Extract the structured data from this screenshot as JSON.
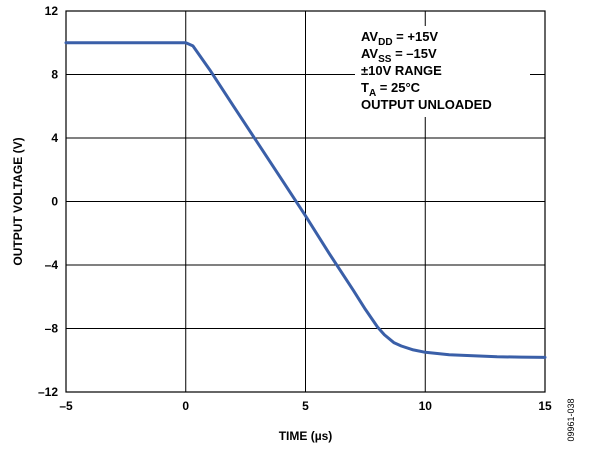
{
  "chart_data": {
    "type": "line",
    "title": "",
    "xlabel": "TIME (µs)",
    "ylabel": "OUTPUT VOLTAGE (V)",
    "xlim": [
      -5,
      15
    ],
    "ylim": [
      -12,
      12
    ],
    "x_ticks": [
      -5,
      0,
      5,
      10,
      15
    ],
    "x_tick_labels": [
      "–5",
      "0",
      "5",
      "10",
      "15"
    ],
    "y_ticks": [
      12,
      8,
      4,
      0,
      -4,
      -8,
      -12
    ],
    "y_tick_labels": [
      "12",
      "8",
      "4",
      "0",
      "–4",
      "–8",
      "–12"
    ],
    "grid": true,
    "series_color": "#3a5fa8",
    "series": [
      {
        "x": [
          -5,
          0,
          0.3,
          1,
          2,
          3,
          4,
          5,
          6,
          7,
          7.5,
          8,
          8.3,
          8.7,
          9,
          9.5,
          10,
          11,
          12,
          13,
          14,
          15
        ],
        "y": [
          10,
          10,
          9.8,
          8.3,
          6.0,
          3.7,
          1.4,
          -0.9,
          -3.3,
          -5.6,
          -6.8,
          -7.9,
          -8.4,
          -8.9,
          -9.1,
          -9.35,
          -9.5,
          -9.65,
          -9.72,
          -9.78,
          -9.8,
          -9.82
        ]
      }
    ],
    "annotation": [
      {
        "main": "AV",
        "sub": "DD",
        "rest": " = +15V"
      },
      {
        "main": "AV",
        "sub": "SS",
        "rest": " = –15V"
      },
      {
        "main": "±10V RANGE",
        "sub": "",
        "rest": ""
      },
      {
        "main": "T",
        "sub": "A",
        "rest": " = 25°C"
      },
      {
        "main": "OUTPUT UNLOADED",
        "sub": "",
        "rest": ""
      }
    ],
    "figure_id": "09961-038"
  }
}
